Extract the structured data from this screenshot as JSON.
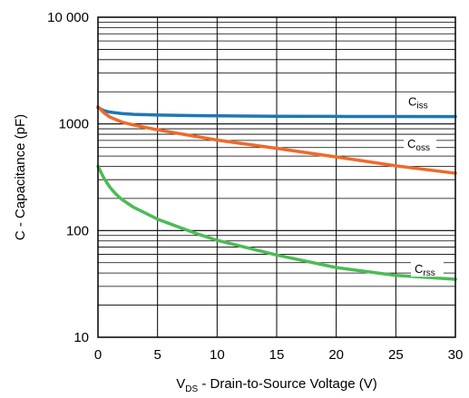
{
  "chart_data": {
    "type": "line",
    "title": "",
    "xlabel": {
      "main": "V",
      "sub": "DS",
      "rest": " - Drain-to-Source Voltage (V)"
    },
    "ylabel": "C - Capacitance (pF)",
    "xlim": [
      0,
      30
    ],
    "ylim": [
      10,
      10000
    ],
    "yscale": "log",
    "grid": true,
    "x_ticks": [
      0,
      5,
      10,
      15,
      20,
      25,
      30
    ],
    "x_tick_labels": [
      "0",
      "5",
      "10",
      "15",
      "20",
      "25",
      "30"
    ],
    "y_ticks": [
      10,
      100,
      1000,
      10000
    ],
    "y_tick_labels": [
      "10",
      "100",
      "1000",
      "10 000"
    ],
    "series": [
      {
        "name": "Ciss",
        "label": {
          "main": "C",
          "sub": "iss"
        },
        "color": "#1f77b4",
        "x": [
          0,
          0.5,
          1,
          2,
          3,
          5,
          8,
          10,
          15,
          20,
          25,
          30
        ],
        "y": [
          1420,
          1330,
          1290,
          1250,
          1230,
          1210,
          1195,
          1190,
          1180,
          1175,
          1172,
          1170
        ]
      },
      {
        "name": "Coss",
        "label": {
          "main": "C",
          "sub": "oss"
        },
        "color": "#ee6a2a",
        "x": [
          0,
          0.5,
          1,
          2,
          3,
          5,
          8,
          10,
          15,
          20,
          25,
          30
        ],
        "y": [
          1450,
          1270,
          1160,
          1040,
          975,
          880,
          770,
          705,
          590,
          490,
          405,
          345
        ]
      },
      {
        "name": "Crss",
        "label": {
          "main": "C",
          "sub": "rss"
        },
        "color": "#4cbb55",
        "x": [
          0,
          0.5,
          1,
          1.5,
          2,
          3,
          5,
          8,
          10,
          15,
          20,
          25,
          30
        ],
        "y": [
          400,
          310,
          255,
          220,
          196,
          165,
          128,
          96,
          81,
          59,
          45,
          38,
          35
        ]
      }
    ]
  }
}
